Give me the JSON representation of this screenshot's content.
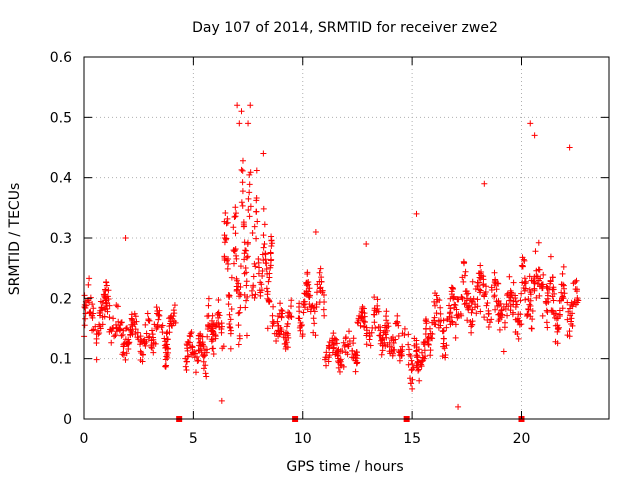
{
  "chart_data": {
    "type": "scatter",
    "title": "Day 107 of 2014, SRMTID for receiver zwe2",
    "xlabel": "GPS time / hours",
    "ylabel": "SRMTID / TECUs",
    "xlim": [
      0,
      24
    ],
    "ylim": [
      0,
      0.6
    ],
    "x_ticks": [
      0,
      5,
      10,
      15,
      20
    ],
    "x_tick_labels": [
      "0",
      "5",
      "10",
      "15",
      "20"
    ],
    "y_ticks": [
      0,
      0.1,
      0.2,
      0.3,
      0.4,
      0.5,
      0.6
    ],
    "y_tick_labels": [
      "0",
      "0.1",
      "0.2",
      "0.3",
      "0.4",
      "0.5",
      "0.6"
    ],
    "grid": true,
    "marker": "plus",
    "series_color": "#ff0000",
    "gap_markers_x": [
      4.35,
      9.65,
      14.75,
      20.0
    ],
    "segments": [
      {
        "x": [
          0.0,
          1.5
        ],
        "y": [
          0.14,
          0.2
        ],
        "spread": 0.06,
        "density": 90
      },
      {
        "x": [
          1.5,
          3.0
        ],
        "y": [
          0.12,
          0.16
        ],
        "spread": 0.05,
        "density": 80
      },
      {
        "x": [
          3.0,
          4.2
        ],
        "y": [
          0.12,
          0.18
        ],
        "spread": 0.05,
        "density": 70
      },
      {
        "x": [
          4.6,
          5.6
        ],
        "y": [
          0.09,
          0.13
        ],
        "spread": 0.04,
        "density": 60
      },
      {
        "x": [
          5.6,
          6.4
        ],
        "y": [
          0.13,
          0.18
        ],
        "spread": 0.05,
        "density": 50
      },
      {
        "x": [
          6.4,
          7.2
        ],
        "y": [
          0.17,
          0.32
        ],
        "spread": 0.1,
        "density": 65
      },
      {
        "x": [
          7.2,
          7.9
        ],
        "y": [
          0.22,
          0.38
        ],
        "spread": 0.12,
        "density": 55
      },
      {
        "x": [
          7.9,
          8.6
        ],
        "y": [
          0.2,
          0.3
        ],
        "spread": 0.07,
        "density": 50
      },
      {
        "x": [
          8.6,
          9.5
        ],
        "y": [
          0.13,
          0.17
        ],
        "spread": 0.05,
        "density": 55
      },
      {
        "x": [
          9.8,
          11.0
        ],
        "y": [
          0.16,
          0.22
        ],
        "spread": 0.06,
        "density": 70
      },
      {
        "x": [
          11.0,
          12.5
        ],
        "y": [
          0.1,
          0.13
        ],
        "spread": 0.04,
        "density": 80
      },
      {
        "x": [
          12.5,
          13.8
        ],
        "y": [
          0.13,
          0.18
        ],
        "spread": 0.05,
        "density": 70
      },
      {
        "x": [
          13.8,
          14.7
        ],
        "y": [
          0.11,
          0.15
        ],
        "spread": 0.05,
        "density": 45
      },
      {
        "x": [
          14.8,
          15.6
        ],
        "y": [
          0.08,
          0.12
        ],
        "spread": 0.05,
        "density": 50
      },
      {
        "x": [
          15.6,
          17.0
        ],
        "y": [
          0.13,
          0.19
        ],
        "spread": 0.06,
        "density": 80
      },
      {
        "x": [
          17.0,
          18.5
        ],
        "y": [
          0.18,
          0.23
        ],
        "spread": 0.08,
        "density": 85
      },
      {
        "x": [
          18.5,
          20.0
        ],
        "y": [
          0.16,
          0.21
        ],
        "spread": 0.07,
        "density": 80
      },
      {
        "x": [
          20.0,
          21.4
        ],
        "y": [
          0.19,
          0.24
        ],
        "spread": 0.08,
        "density": 85
      },
      {
        "x": [
          21.4,
          22.6
        ],
        "y": [
          0.16,
          0.22
        ],
        "spread": 0.07,
        "density": 70
      }
    ],
    "notable_points": [
      {
        "x": 7.0,
        "y": 0.52
      },
      {
        "x": 7.2,
        "y": 0.51
      },
      {
        "x": 7.6,
        "y": 0.52
      },
      {
        "x": 7.5,
        "y": 0.49
      },
      {
        "x": 7.1,
        "y": 0.49
      },
      {
        "x": 8.2,
        "y": 0.44
      },
      {
        "x": 20.4,
        "y": 0.49
      },
      {
        "x": 20.6,
        "y": 0.47
      },
      {
        "x": 22.2,
        "y": 0.45
      },
      {
        "x": 18.3,
        "y": 0.39
      },
      {
        "x": 15.2,
        "y": 0.34
      },
      {
        "x": 10.6,
        "y": 0.31
      },
      {
        "x": 1.9,
        "y": 0.3
      },
      {
        "x": 12.9,
        "y": 0.29
      },
      {
        "x": 15.0,
        "y": 0.05
      },
      {
        "x": 17.1,
        "y": 0.02
      },
      {
        "x": 6.3,
        "y": 0.03
      }
    ]
  }
}
